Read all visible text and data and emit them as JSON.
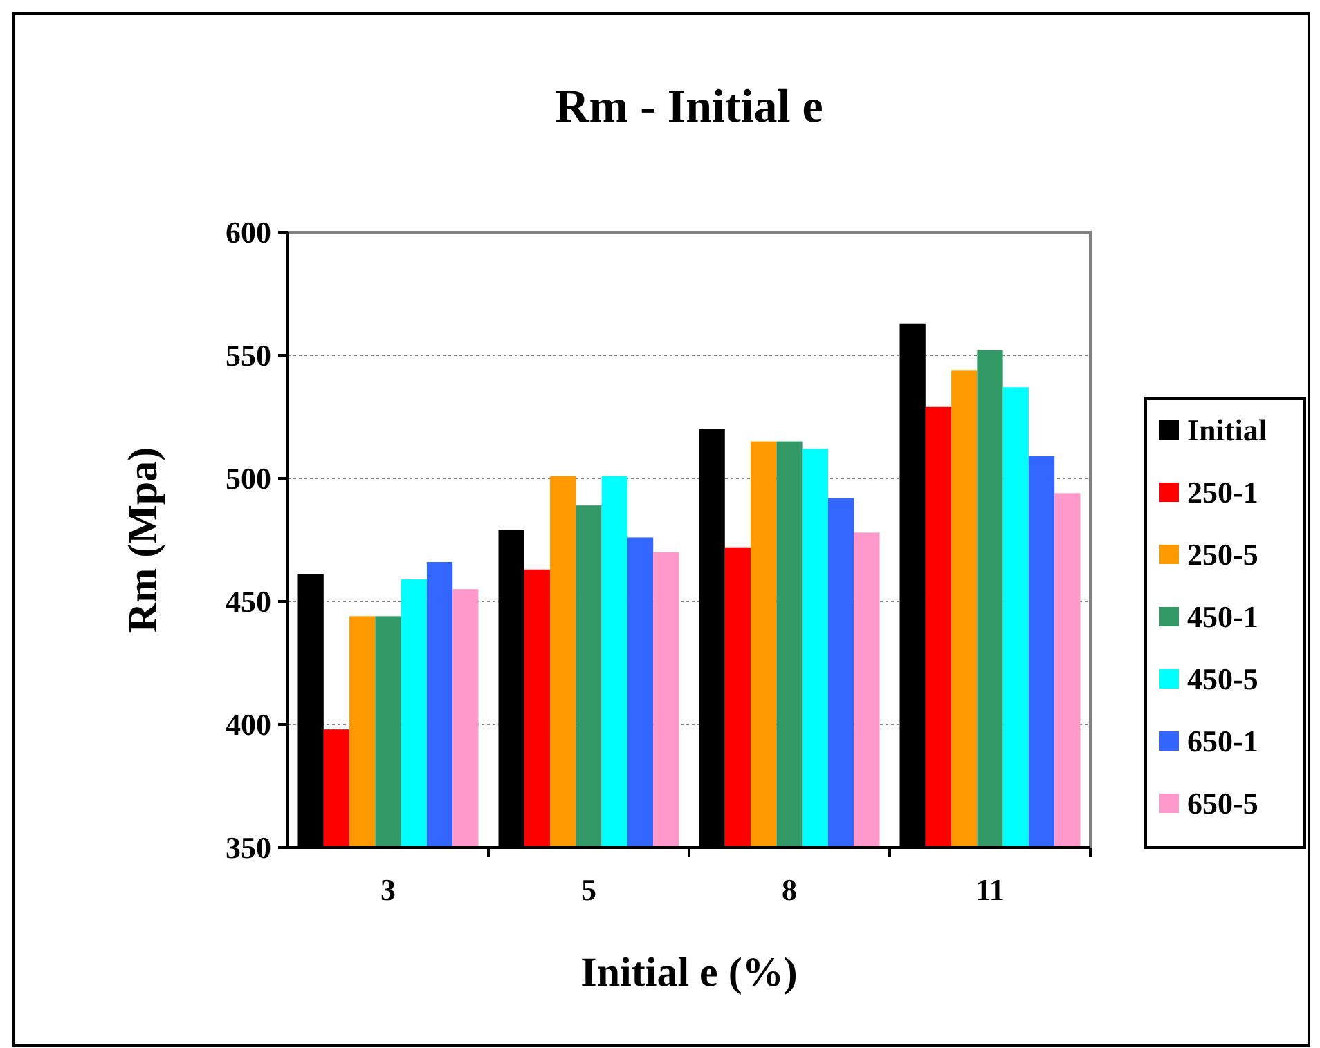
{
  "chart_data": {
    "type": "bar",
    "title": "Rm - Initial e",
    "xlabel": "Initial e (%)",
    "ylabel": "Rm (Mpa)",
    "categories": [
      "3",
      "5",
      "8",
      "11"
    ],
    "series": [
      {
        "name": "Initial",
        "color": "#000000",
        "values": [
          461,
          479,
          520,
          563
        ]
      },
      {
        "name": "250-1",
        "color": "#ff0000",
        "values": [
          398,
          463,
          472,
          529
        ]
      },
      {
        "name": "250-5",
        "color": "#ff9900",
        "values": [
          444,
          501,
          515,
          544
        ]
      },
      {
        "name": "450-1",
        "color": "#339966",
        "values": [
          444,
          489,
          515,
          552
        ]
      },
      {
        "name": "450-5",
        "color": "#00ffff",
        "values": [
          459,
          501,
          512,
          537
        ]
      },
      {
        "name": "650-1",
        "color": "#3366ff",
        "values": [
          466,
          476,
          492,
          509
        ]
      },
      {
        "name": "650-5",
        "color": "#ff99cc",
        "values": [
          455,
          470,
          478,
          494
        ]
      }
    ],
    "ylim": [
      350,
      600
    ],
    "yticks": [
      350,
      400,
      450,
      500,
      550,
      600
    ],
    "grid": "y",
    "legend": "right"
  }
}
